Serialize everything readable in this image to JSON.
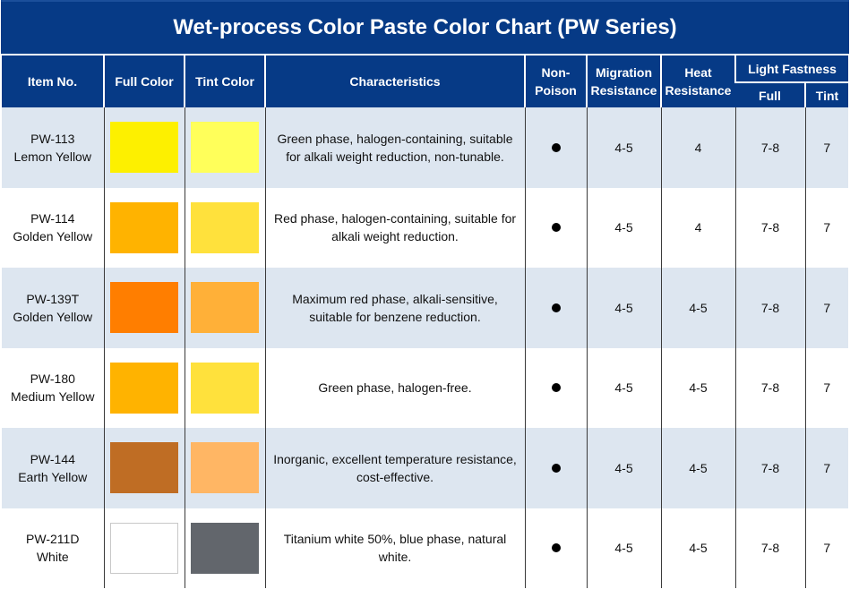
{
  "title": "Wet-process Color Paste Color Chart (PW Series)",
  "headers": {
    "item_no": "Item No.",
    "full_color": "Full Color",
    "tint_color": "Tint Color",
    "characteristics": "Characteristics",
    "non_poison_1": "Non-",
    "non_poison_2": "Poison",
    "migration_1": "Migration",
    "migration_2": "Resistance",
    "heat_1": "Heat",
    "heat_2": "Resistance",
    "light_fastness": "Light Fastness",
    "full": "Full",
    "tint": "Tint"
  },
  "rows": [
    {
      "code": "PW-113",
      "name": "Lemon Yellow",
      "full_color": "#fdf000",
      "tint_color": "#ffff5a",
      "char_1": "Green phase, halogen-containing, suitable",
      "char_2": "for alkali weight reduction, non-tunable.",
      "non_poison": "●",
      "migration": "4-5",
      "heat": "4",
      "lf_full": "7-8",
      "lf_tint": "7"
    },
    {
      "code": "PW-114",
      "name": "Golden Yellow",
      "full_color": "#ffb300",
      "tint_color": "#ffe13c",
      "char_1": "Red phase, halogen-containing, suitable for",
      "char_2": "alkali weight reduction.",
      "non_poison": "●",
      "migration": "4-5",
      "heat": "4",
      "lf_full": "7-8",
      "lf_tint": "7"
    },
    {
      "code": "PW-139T",
      "name": "Golden Yellow",
      "full_color": "#ff7e00",
      "tint_color": "#ffb038",
      "char_1": "Maximum red phase, alkali-sensitive,",
      "char_2": "suitable for benzene reduction.",
      "non_poison": "●",
      "migration": "4-5",
      "heat": "4-5",
      "lf_full": "7-8",
      "lf_tint": "7"
    },
    {
      "code": "PW-180",
      "name": "Medium Yellow",
      "full_color": "#ffb300",
      "tint_color": "#ffe13c",
      "char_1": "Green phase, halogen-free.",
      "char_2": "",
      "non_poison": "●",
      "migration": "4-5",
      "heat": "4-5",
      "lf_full": "7-8",
      "lf_tint": "7"
    },
    {
      "code": "PW-144",
      "name": "Earth Yellow",
      "full_color": "#bf6d24",
      "tint_color": "#ffb664",
      "char_1": "Inorganic, excellent temperature resistance,",
      "char_2": "cost-effective.",
      "non_poison": "●",
      "migration": "4-5",
      "heat": "4-5",
      "lf_full": "7-8",
      "lf_tint": "7"
    },
    {
      "code": "PW-211D",
      "name": "White",
      "full_color": "#ffffff",
      "tint_color": "#62666c",
      "char_1": "Titanium white 50%, blue phase, natural",
      "char_2": "white.",
      "non_poison": "●",
      "migration": "4-5",
      "heat": "4-5",
      "lf_full": "7-8",
      "lf_tint": "7"
    }
  ]
}
